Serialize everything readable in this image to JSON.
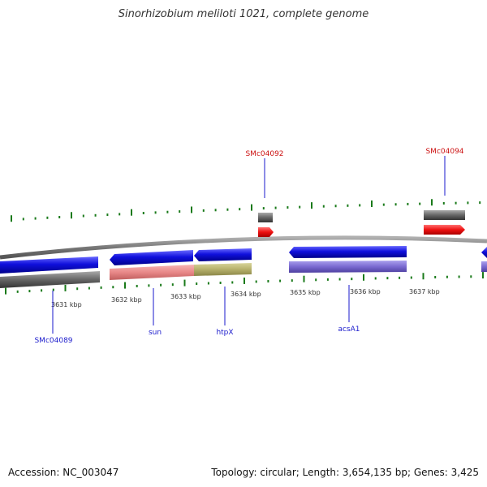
{
  "title": "Sinorhizobium meliloti 1021, complete genome",
  "accession": "Accession: NC_003047",
  "stats": "Topology: circular; Length: 3,654,135 bp; Genes: 3,425",
  "colors": {
    "backbone": "#8a8a8a",
    "forward": "#1010dd",
    "gray": "#666666",
    "red": "#ee1111",
    "pink": "#e88888",
    "olive": "#b5b06a",
    "purple": "#7a6ad0",
    "tick": "#1a7a1a",
    "label_red": "#cc1111",
    "label_blue": "#1a1acc"
  },
  "ticks": [
    {
      "label": "3631 kbp"
    },
    {
      "label": "3632 kbp"
    },
    {
      "label": "3633 kbp"
    },
    {
      "label": "3634 kbp"
    },
    {
      "label": "3635 kbp"
    },
    {
      "label": "3636 kbp"
    },
    {
      "label": "3637 kbp"
    }
  ],
  "gene_labels": [
    {
      "name": "SMc04092",
      "color": "red"
    },
    {
      "name": "SMc04094",
      "color": "red"
    },
    {
      "name": "SMc04089",
      "color": "blue"
    },
    {
      "name": "sun",
      "color": "blue"
    },
    {
      "name": "htpX",
      "color": "blue"
    },
    {
      "name": "acsA1",
      "color": "blue"
    }
  ]
}
